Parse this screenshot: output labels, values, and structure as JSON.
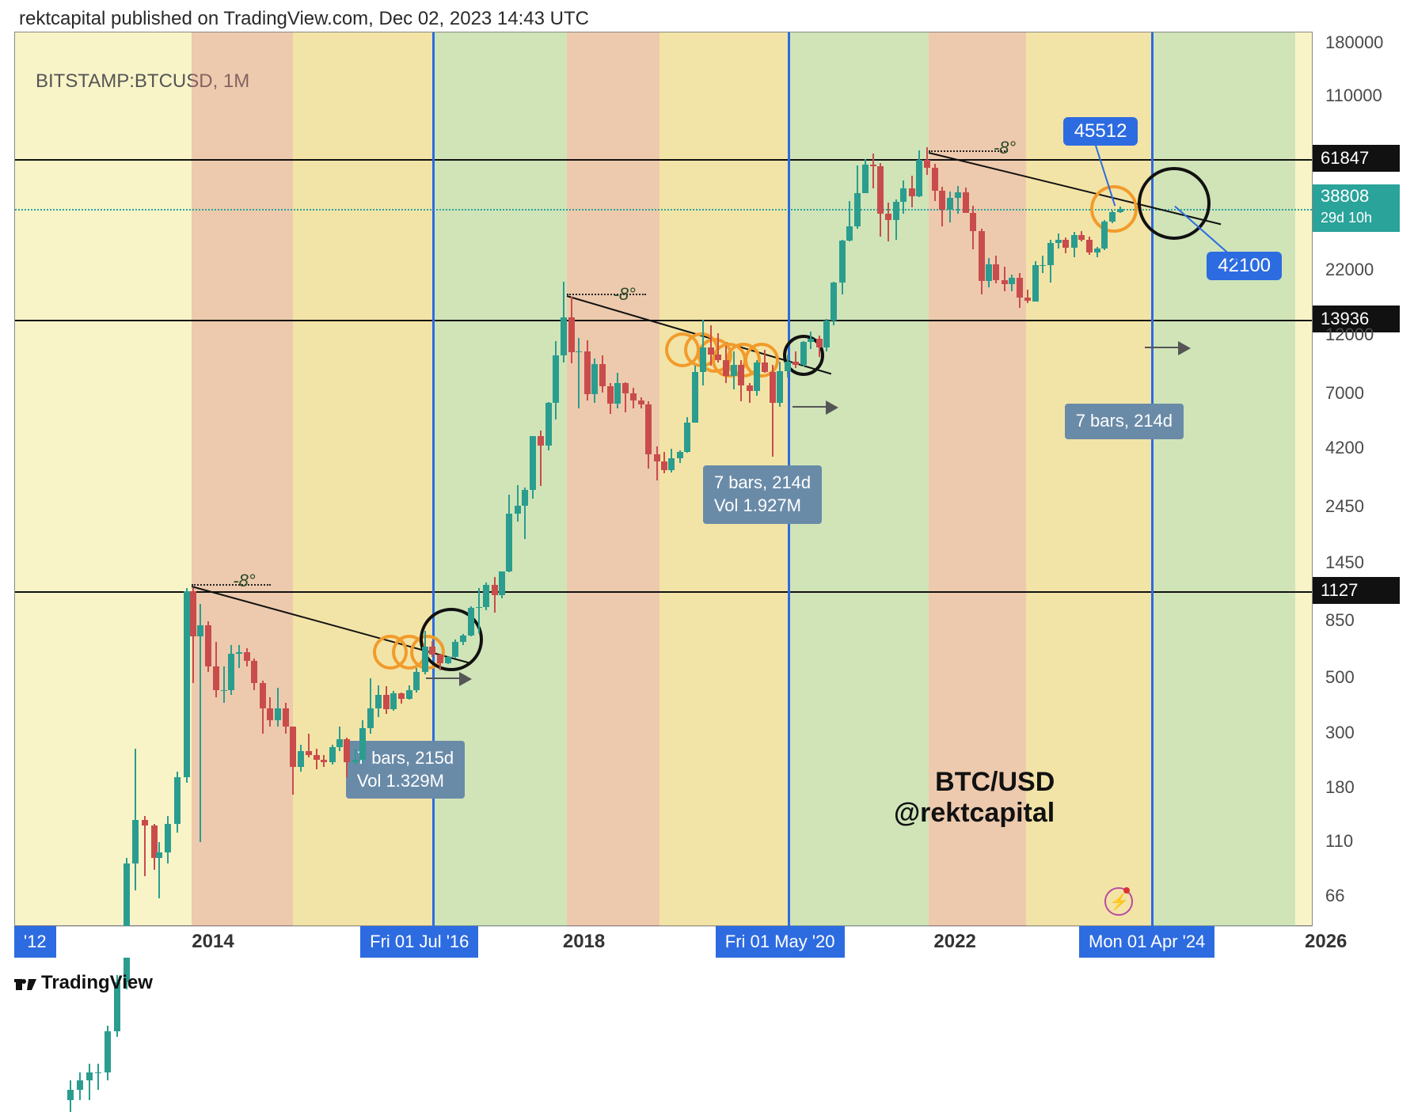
{
  "header": {
    "text": "rektcapital published on TradingView.com, Dec 02, 2023 14:43 UTC"
  },
  "symbol": {
    "ticker": "BITSTAMP:BTCUSD, 1M"
  },
  "chart": {
    "type": "candlestick",
    "scale": "log",
    "background_color": "#f8f4c8",
    "up_color": "#2a9d8f",
    "down_color": "#c94c4c",
    "xrange_years": [
      2012,
      2026
    ],
    "yrange": [
      50,
      200000
    ],
    "yticks": [
      66,
      110,
      180,
      300,
      500,
      850,
      1450,
      2450,
      4200,
      7000,
      12000,
      22000,
      110000,
      180000
    ],
    "hlines": [
      {
        "value": 61847,
        "style": "solid",
        "label_style": "black"
      },
      {
        "value": 38808,
        "style": "dotted",
        "label_style": "teal",
        "sub_label": "29d 10h"
      },
      {
        "value": 13936,
        "style": "solid",
        "label_style": "black"
      },
      {
        "value": 1127,
        "style": "solid",
        "label_style": "black"
      }
    ],
    "vlines": [
      {
        "label": "Fri 01 Jul '16",
        "year": 2016.5
      },
      {
        "label": "Fri 01 May '20",
        "year": 2020.33
      },
      {
        "label": "Mon 01 Apr '24",
        "year": 2024.25
      }
    ],
    "xtick_years": [
      {
        "label": "'12",
        "year": 2012,
        "boxed": true
      },
      {
        "label": "2014",
        "year": 2014,
        "boxed": false
      },
      {
        "label": "2018",
        "year": 2018,
        "boxed": false
      },
      {
        "label": "2022",
        "year": 2022,
        "boxed": false
      },
      {
        "label": "2026",
        "year": 2026,
        "boxed": false
      }
    ],
    "shaded_regions": [
      {
        "from_year": 2013.9,
        "to_year": 2015.0,
        "color": "#d97b7b"
      },
      {
        "from_year": 2015.0,
        "to_year": 2016.5,
        "color": "#e8c76a"
      },
      {
        "from_year": 2016.5,
        "to_year": 2017.95,
        "color": "#86c79a"
      },
      {
        "from_year": 2017.95,
        "to_year": 2018.95,
        "color": "#d97b7b"
      },
      {
        "from_year": 2018.95,
        "to_year": 2020.35,
        "color": "#e8c76a"
      },
      {
        "from_year": 2020.35,
        "to_year": 2021.85,
        "color": "#86c79a"
      },
      {
        "from_year": 2021.85,
        "to_year": 2022.9,
        "color": "#d97b7b"
      },
      {
        "from_year": 2022.9,
        "to_year": 2024.25,
        "color": "#e8c76a"
      },
      {
        "from_year": 2024.25,
        "to_year": 2025.8,
        "color": "#86c79a"
      }
    ],
    "trendlines": [
      {
        "from_year": 2013.9,
        "from_val": 1180,
        "to_year": 2016.9,
        "to_val": 580
      },
      {
        "from_year": 2017.95,
        "from_val": 17500,
        "to_year": 2020.8,
        "to_val": 8500
      },
      {
        "from_year": 2021.85,
        "from_val": 66000,
        "to_year": 2025.0,
        "to_val": 34000
      }
    ],
    "angle_labels": [
      {
        "text": "-8°",
        "year": 2014.35,
        "val": 1230
      },
      {
        "text": "-8°",
        "year": 2018.45,
        "val": 17500
      },
      {
        "text": "-8°",
        "year": 2022.55,
        "val": 68000
      }
    ],
    "circles": [
      {
        "year": 2016.05,
        "val": 640,
        "r": 22,
        "kind": "orange"
      },
      {
        "year": 2016.25,
        "val": 640,
        "r": 22,
        "kind": "orange"
      },
      {
        "year": 2016.45,
        "val": 640,
        "r": 22,
        "kind": "orange"
      },
      {
        "year": 2016.7,
        "val": 720,
        "r": 40,
        "kind": "black"
      },
      {
        "year": 2019.2,
        "val": 10500,
        "r": 22,
        "kind": "orange"
      },
      {
        "year": 2019.4,
        "val": 10500,
        "r": 22,
        "kind": "orange"
      },
      {
        "year": 2019.55,
        "val": 10000,
        "r": 22,
        "kind": "orange"
      },
      {
        "year": 2019.7,
        "val": 9600,
        "r": 22,
        "kind": "orange"
      },
      {
        "year": 2019.85,
        "val": 9600,
        "r": 22,
        "kind": "orange"
      },
      {
        "year": 2020.05,
        "val": 9600,
        "r": 22,
        "kind": "orange"
      },
      {
        "year": 2020.5,
        "val": 10000,
        "r": 26,
        "kind": "black"
      },
      {
        "year": 2023.85,
        "val": 39000,
        "r": 30,
        "kind": "orange"
      },
      {
        "year": 2024.5,
        "val": 41000,
        "r": 46,
        "kind": "black"
      }
    ],
    "callouts": [
      {
        "text": "45512",
        "year": 2023.3,
        "val": 80000
      },
      {
        "text": "42100",
        "year": 2024.85,
        "val": 23000
      }
    ],
    "info_boxes": [
      {
        "lines": [
          "7 bars, 215d",
          "Vol 1.329M"
        ],
        "year": 2016.25,
        "val": 280,
        "arrow_year": 2016.6,
        "arrow_val": 500
      },
      {
        "lines": [
          "7 bars, 214d",
          "Vol 1.927M"
        ],
        "year": 2020.1,
        "val": 3600,
        "arrow_year": 2020.55,
        "arrow_val": 6200
      },
      {
        "lines": [
          "7 bars, 214d"
        ],
        "year": 2024.0,
        "val": 6400,
        "arrow_year": 2024.35,
        "arrow_val": 10800
      }
    ],
    "watermark": {
      "line1": "BTC/USD",
      "line2": "@rektcapital",
      "year": 2022.5,
      "val": 220
    }
  },
  "footer": {
    "brand": "TradingView"
  },
  "snap_icon": {
    "glyph": "⚡"
  }
}
